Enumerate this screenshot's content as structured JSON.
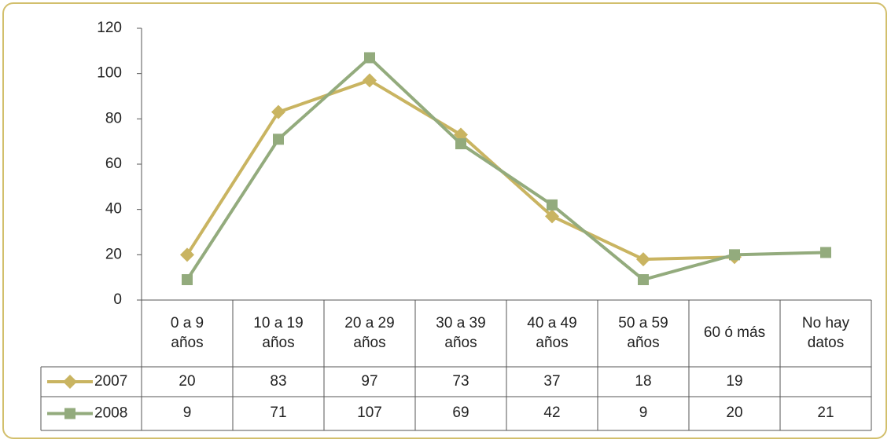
{
  "chart_data": {
    "type": "line",
    "categories": [
      "0 a 9 años",
      "10 a 19 años",
      "20 a 29 años",
      "30 a 39 años",
      "40 a 49 años",
      "50 a 59 años",
      "60 ó más",
      "No hay datos"
    ],
    "series": [
      {
        "name": "2007",
        "color": "#c9b461",
        "marker": "diamond",
        "values": [
          20,
          83,
          97,
          73,
          37,
          18,
          19,
          null
        ]
      },
      {
        "name": "2008",
        "color": "#93ab7d",
        "marker": "square",
        "values": [
          9,
          71,
          107,
          69,
          42,
          9,
          20,
          21
        ]
      }
    ],
    "ylim": [
      0,
      120
    ],
    "yticks": [
      0,
      20,
      40,
      60,
      80,
      100,
      120
    ],
    "grid": false,
    "legend": "data-table"
  }
}
